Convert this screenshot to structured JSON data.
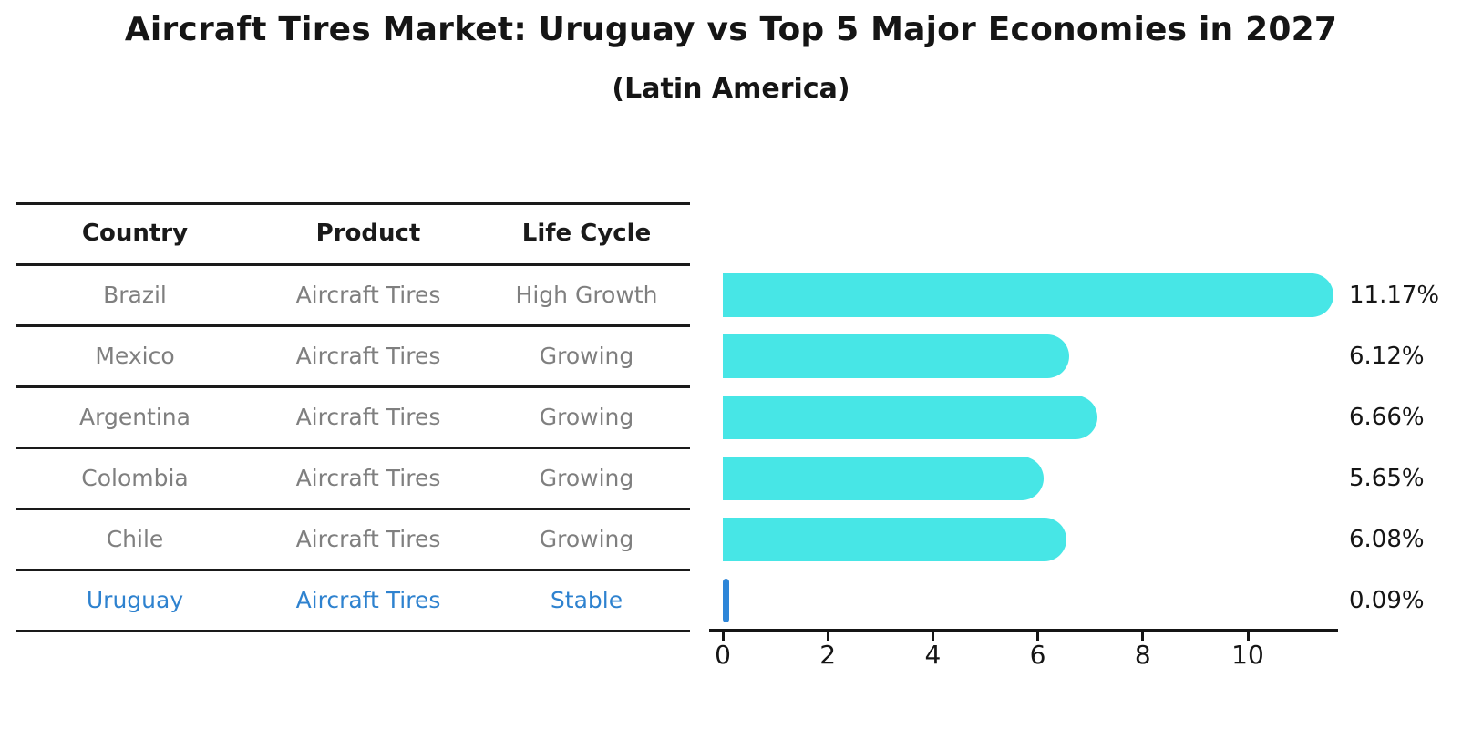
{
  "title": "Aircraft Tires Market: Uruguay vs Top 5 Major Economies in 2027",
  "subtitle": "(Latin America)",
  "table": {
    "headers": [
      "Country",
      "Product",
      "Life Cycle"
    ],
    "rows": [
      {
        "country": "Brazil",
        "product": "Aircraft Tires",
        "life_cycle": "High Growth",
        "highlight": false
      },
      {
        "country": "Mexico",
        "product": "Aircraft Tires",
        "life_cycle": "Growing",
        "highlight": false
      },
      {
        "country": "Argentina",
        "product": "Aircraft Tires",
        "life_cycle": "Growing",
        "highlight": false
      },
      {
        "country": "Colombia",
        "product": "Aircraft Tires",
        "life_cycle": "Growing",
        "highlight": false
      },
      {
        "country": "Chile",
        "product": "Aircraft Tires",
        "life_cycle": "Growing",
        "highlight": false
      },
      {
        "country": "Uruguay",
        "product": "Aircraft Tires",
        "life_cycle": "Stable",
        "highlight": true
      }
    ]
  },
  "chart_data": {
    "type": "bar",
    "orientation": "horizontal",
    "title": "Aircraft Tires Market: Uruguay vs Top 5 Major Economies in 2027 (Latin America)",
    "categories": [
      "Brazil",
      "Mexico",
      "Argentina",
      "Colombia",
      "Chile",
      "Uruguay"
    ],
    "values": [
      11.17,
      6.12,
      6.66,
      5.65,
      6.08,
      0.09
    ],
    "value_labels": [
      "11.17%",
      "6.12%",
      "6.66%",
      "5.65%",
      "6.08%",
      "0.09%"
    ],
    "x_ticks": [
      "0",
      "2",
      "4",
      "6",
      "8",
      "10"
    ],
    "xlim": [
      0,
      11.73
    ],
    "grid": false,
    "legend": false,
    "highlight_index": 5
  },
  "colors": {
    "background": "#ffffff",
    "bar_color": "#47e6e6",
    "highlight_bar_color": "#2e86d8",
    "highlight_text": "#2e82cf",
    "text_primary": "#151515",
    "text_muted": "#7f7f7f",
    "table_line": "#1a1a1a"
  }
}
